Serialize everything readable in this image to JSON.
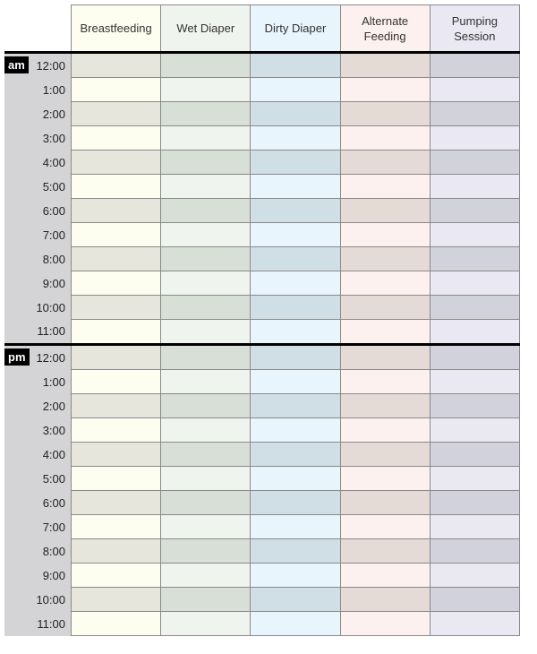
{
  "columns": [
    {
      "label": "Breastfeeding",
      "light": "#fdfdf0",
      "dark": "#e6e6dd"
    },
    {
      "label": "Wet Diaper",
      "light": "#f0f4ee",
      "dark": "#d8dfd6"
    },
    {
      "label": "Dirty Diaper",
      "light": "#e8f5fc",
      "dark": "#d0dfe6"
    },
    {
      "label": "Alternate Feeding",
      "light": "#fcf1ee",
      "dark": "#e4dad6"
    },
    {
      "label": "Pumping Session",
      "light": "#eae8f3",
      "dark": "#d2d2dc"
    }
  ],
  "periods": [
    {
      "label": "am",
      "times": [
        "12:00",
        "1:00",
        "2:00",
        "3:00",
        "4:00",
        "5:00",
        "6:00",
        "7:00",
        "8:00",
        "9:00",
        "10:00",
        "11:00"
      ]
    },
    {
      "label": "pm",
      "times": [
        "12:00",
        "1:00",
        "2:00",
        "3:00",
        "4:00",
        "5:00",
        "6:00",
        "7:00",
        "8:00",
        "9:00",
        "10:00",
        "11:00"
      ]
    }
  ]
}
